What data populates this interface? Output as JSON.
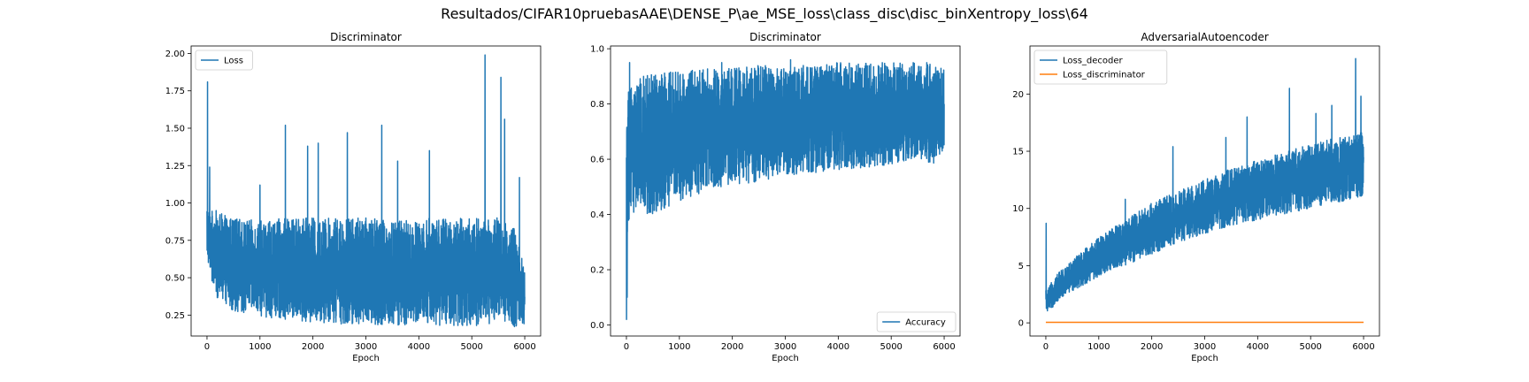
{
  "figure": {
    "suptitle": "Resultados/CIFAR10pruebasAAE\\DENSE_P\\ae_MSE_loss\\class_disc\\disc_binXentropy_loss\\64",
    "line_color": "#1f77b4",
    "second_color": "#ff7f0e"
  },
  "chart_data": [
    {
      "type": "line",
      "title": "Discriminator",
      "xlabel": "Epoch",
      "ylabel": "",
      "xlim": [
        -300,
        6300
      ],
      "ylim": [
        0.11,
        2.05
      ],
      "xticks": [
        0,
        1000,
        2000,
        3000,
        4000,
        5000,
        6000
      ],
      "yticks": [
        0.25,
        0.5,
        0.75,
        1.0,
        1.25,
        1.5,
        1.75,
        2.0
      ],
      "ytick_labels": [
        "0.25",
        "0.50",
        "0.75",
        "1.00",
        "1.25",
        "1.50",
        "1.75",
        "2.00"
      ],
      "legend": "top-left",
      "series": [
        {
          "name": "Loss",
          "color": "#1f77b4",
          "noisy": true,
          "x": [
            0,
            10,
            100,
            200,
            300,
            500,
            1000,
            1500,
            2000,
            2500,
            3000,
            3500,
            4000,
            4500,
            5000,
            5500,
            5800,
            6000
          ],
          "lower": [
            0.65,
            0.62,
            0.45,
            0.36,
            0.32,
            0.28,
            0.24,
            0.22,
            0.2,
            0.19,
            0.19,
            0.18,
            0.18,
            0.18,
            0.18,
            0.18,
            0.17,
            0.19
          ],
          "upper": [
            1.0,
            0.95,
            0.95,
            0.95,
            0.92,
            0.9,
            0.88,
            0.9,
            0.9,
            0.9,
            0.9,
            0.88,
            0.9,
            0.9,
            0.9,
            0.9,
            0.85,
            0.55
          ],
          "spikes": [
            [
              10,
              1.81
            ],
            [
              50,
              1.24
            ],
            [
              1000,
              1.12
            ],
            [
              1480,
              1.52
            ],
            [
              1900,
              1.38
            ],
            [
              2100,
              1.4
            ],
            [
              2650,
              1.47
            ],
            [
              3300,
              1.52
            ],
            [
              3600,
              1.28
            ],
            [
              4200,
              1.35
            ],
            [
              5250,
              1.99
            ],
            [
              5550,
              1.84
            ],
            [
              5620,
              1.56
            ],
            [
              5900,
              1.17
            ]
          ]
        }
      ]
    },
    {
      "type": "line",
      "title": "Discriminator",
      "xlabel": "Epoch",
      "ylabel": "",
      "xlim": [
        -300,
        6300
      ],
      "ylim": [
        -0.04,
        1.01
      ],
      "xticks": [
        0,
        1000,
        2000,
        3000,
        4000,
        5000,
        6000
      ],
      "yticks": [
        0.0,
        0.2,
        0.4,
        0.6,
        0.8,
        1.0
      ],
      "ytick_labels": [
        "0.0",
        "0.2",
        "0.4",
        "0.6",
        "0.8",
        "1.0"
      ],
      "legend": "bottom-right",
      "series": [
        {
          "name": "Accuracy",
          "color": "#1f77b4",
          "noisy": true,
          "x": [
            0,
            10,
            30,
            60,
            100,
            200,
            300,
            500,
            1000,
            1500,
            2000,
            2500,
            3000,
            3500,
            4000,
            4500,
            5000,
            5500,
            5800,
            6000
          ],
          "lower": [
            0.01,
            0.05,
            0.2,
            0.35,
            0.4,
            0.4,
            0.38,
            0.4,
            0.45,
            0.48,
            0.5,
            0.52,
            0.54,
            0.55,
            0.56,
            0.57,
            0.58,
            0.6,
            0.58,
            0.62
          ],
          "upper": [
            0.7,
            0.75,
            0.85,
            0.88,
            0.88,
            0.88,
            0.9,
            0.91,
            0.92,
            0.93,
            0.93,
            0.94,
            0.94,
            0.94,
            0.95,
            0.95,
            0.95,
            0.95,
            0.95,
            0.93
          ],
          "spikes": [
            [
              5,
              0.7
            ],
            [
              60,
              0.95
            ],
            [
              1800,
              0.95
            ],
            [
              3100,
              0.96
            ]
          ]
        }
      ]
    },
    {
      "type": "line",
      "title": "AdversarialAutoencoder",
      "xlabel": "Epoch",
      "ylabel": "",
      "xlim": [
        -300,
        6300
      ],
      "ylim": [
        -1.15,
        24.2
      ],
      "xticks": [
        0,
        1000,
        2000,
        3000,
        4000,
        5000,
        6000
      ],
      "yticks": [
        0,
        5,
        10,
        15,
        20
      ],
      "ytick_labels": [
        "0",
        "5",
        "10",
        "15",
        "20"
      ],
      "legend": "top-left",
      "series": [
        {
          "name": "Loss_decoder",
          "color": "#1f77b4",
          "noisy": true,
          "x": [
            0,
            10,
            50,
            100,
            200,
            500,
            1000,
            1500,
            2000,
            2500,
            3000,
            3500,
            4000,
            4500,
            5000,
            5500,
            6000
          ],
          "lower": [
            1.5,
            1.2,
            0.8,
            1.2,
            1.8,
            2.8,
            4.0,
            5.0,
            6.0,
            7.0,
            7.8,
            8.5,
            9.0,
            9.5,
            10.0,
            10.5,
            11.0
          ],
          "upper": [
            3.0,
            2.5,
            3.0,
            3.5,
            4.2,
            5.5,
            7.5,
            9.0,
            10.5,
            11.5,
            12.5,
            13.5,
            14.2,
            15.0,
            15.6,
            16.2,
            16.8
          ],
          "spikes": [
            [
              5,
              8.7
            ],
            [
              1500,
              10.8
            ],
            [
              2400,
              15.4
            ],
            [
              3400,
              16.2
            ],
            [
              3800,
              18.0
            ],
            [
              4600,
              20.5
            ],
            [
              5100,
              18.3
            ],
            [
              5400,
              19.0
            ],
            [
              5850,
              23.1
            ],
            [
              5950,
              19.8
            ]
          ]
        },
        {
          "name": "Loss_discriminator",
          "color": "#ff7f0e",
          "noisy": false,
          "x": [
            0,
            6000
          ],
          "values": [
            0.05,
            0.05
          ]
        }
      ]
    }
  ]
}
